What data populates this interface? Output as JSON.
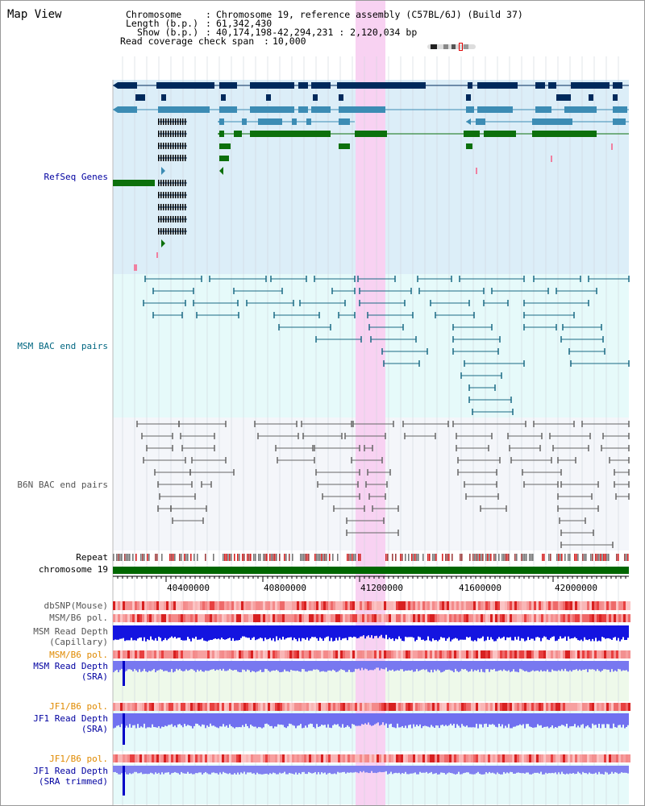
{
  "view_title": "Map View",
  "header": {
    "chromosome_label": "Chromosome",
    "chromosome_value": "Chromosome 19, reference assembly (C57BL/6J) (Build 37)",
    "length_label": "Length (b.p.)",
    "length_value": "61,342,430",
    "show_label": "Show (b.p.)",
    "show_value": "40,174,198-42,294,231 : 2,120,034 bp",
    "read_coverage_label": "Read coverage check span",
    "read_coverage_value": "10,000"
  },
  "tracks": {
    "refseq": "RefSeq Genes",
    "msm_bac": "MSM BAC end pairs",
    "b6n_bac": "B6N BAC end pairs",
    "repeat": "Repeat",
    "chromosome": "chromosome 19",
    "dbsnp": "dbSNP(Mouse)",
    "msm_b6_pol_1": "MSM/B6 pol.",
    "msm_depth_cap_1": "MSM Read Depth",
    "msm_depth_cap_2": "(Capillary)",
    "msm_b6_pol_2": "MSM/B6 pol.",
    "msm_depth_sra_1": "MSM Read Depth",
    "msm_depth_sra_2": "(SRA)",
    "jf1_b6_pol_1": "JF1/B6 pol.",
    "jf1_depth_sra_1": "JF1 Read Depth",
    "jf1_depth_sra_2": "(SRA)",
    "jf1_b6_pol_2": "JF1/B6 pol.",
    "jf1_depth_trim_1": "JF1 Read Depth",
    "jf1_depth_trim_2": "(SRA trimmed)"
  },
  "axis_ticks": [
    "40400000",
    "40800000",
    "41200000",
    "41600000",
    "42000000"
  ],
  "colors": {
    "refseq_bg": "#dceef8",
    "msm_bg": "#e6fafa",
    "b6n_bg": "#f4f6fa",
    "highlight": "#f8d2f2",
    "gene_dark": "#002a5c",
    "gene_mid": "#3c8cb4",
    "gene_green": "#0c700c",
    "msm_pair": "#1a6a84",
    "b6n_pair": "#666666",
    "chrom_bar": "#006600",
    "label_blue": "#0000a0",
    "label_teal": "#006680",
    "label_orange": "#e08a00",
    "label_gray": "#555555"
  }
}
